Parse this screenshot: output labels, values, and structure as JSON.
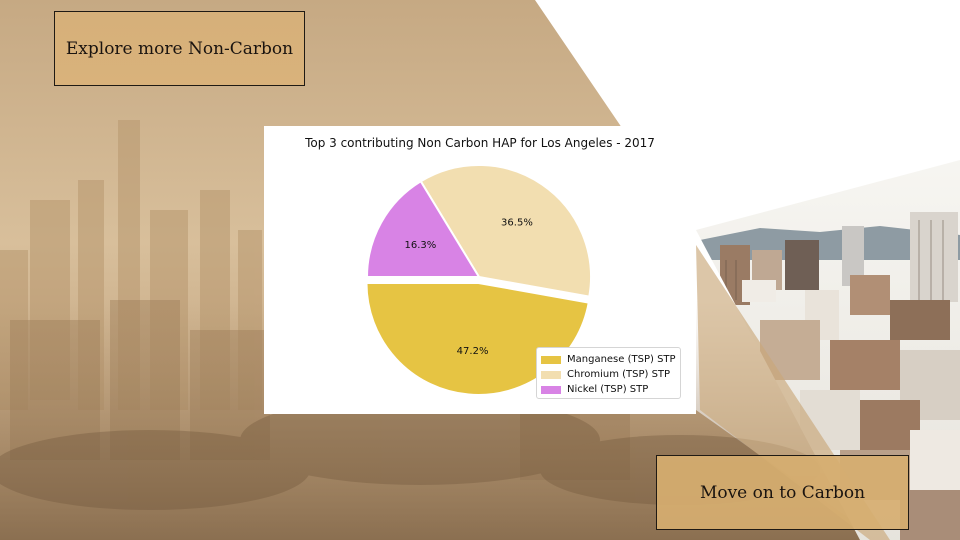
{
  "buttons": {
    "explore_label": "Explore more Non-Carbon",
    "carbon_label": "Move on to Carbon"
  },
  "colors": {
    "button_fill": "#d6b07a",
    "manganese": "#e6c443",
    "chromium": "#f2deb0",
    "nickel": "#d883e5"
  },
  "chart_data": {
    "type": "pie",
    "title": "Top 3 contributing Non Carbon HAP for Los Angeles - 2017",
    "series": [
      {
        "name": "Manganese (TSP) STP",
        "value": 47.2,
        "label": "47.2%",
        "color": "#e6c443",
        "explode": true
      },
      {
        "name": "Chromium (TSP) STP",
        "value": 36.5,
        "label": "36.5%",
        "color": "#f2deb0",
        "explode": false
      },
      {
        "name": "Nickel (TSP) STP",
        "value": 16.3,
        "label": "16.3%",
        "color": "#d883e5",
        "explode": false
      }
    ],
    "legend_position": "lower-right"
  }
}
